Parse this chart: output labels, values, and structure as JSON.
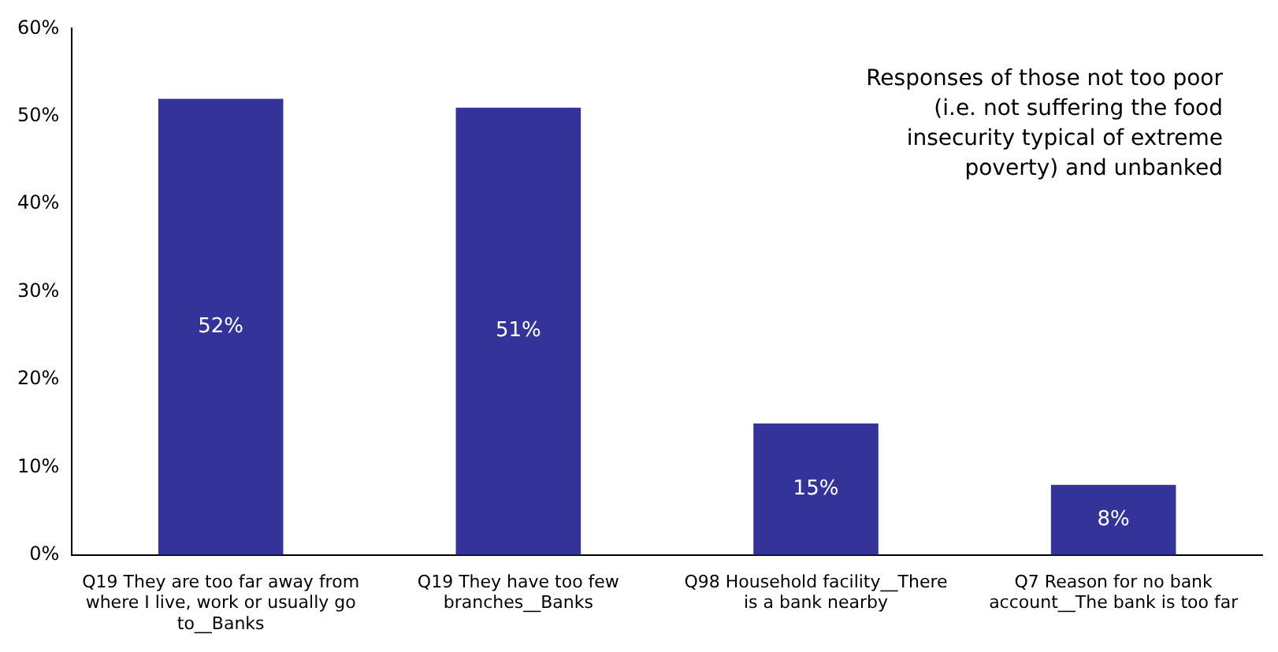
{
  "chart_data": {
    "type": "bar",
    "categories": [
      "Q19 They are too far away from where I live, work or usually go to__Banks",
      "Q19 They have too few branches__Banks",
      "Q98 Household facility__There is a bank nearby",
      "Q7 Reason for no bank account__The bank is too far"
    ],
    "values": [
      52,
      51,
      15,
      8
    ],
    "color": "#333399",
    "ylim": [
      0,
      60
    ],
    "yticks": [
      {
        "value": 0,
        "label": "0%"
      },
      {
        "value": 10,
        "label": "10%"
      },
      {
        "value": 20,
        "label": "20%"
      },
      {
        "value": 30,
        "label": "30%"
      },
      {
        "value": 40,
        "label": "40%"
      },
      {
        "value": 50,
        "label": "50%"
      },
      {
        "value": 60,
        "label": "60%"
      }
    ],
    "value_labels": [
      "52%",
      "51%",
      "15%",
      "8%"
    ],
    "annotations": [
      "Responses of those not too poor (i.e. not suffering the food insecurity typical of extreme poverty) and unbanked"
    ],
    "grid": false,
    "legend": false
  }
}
